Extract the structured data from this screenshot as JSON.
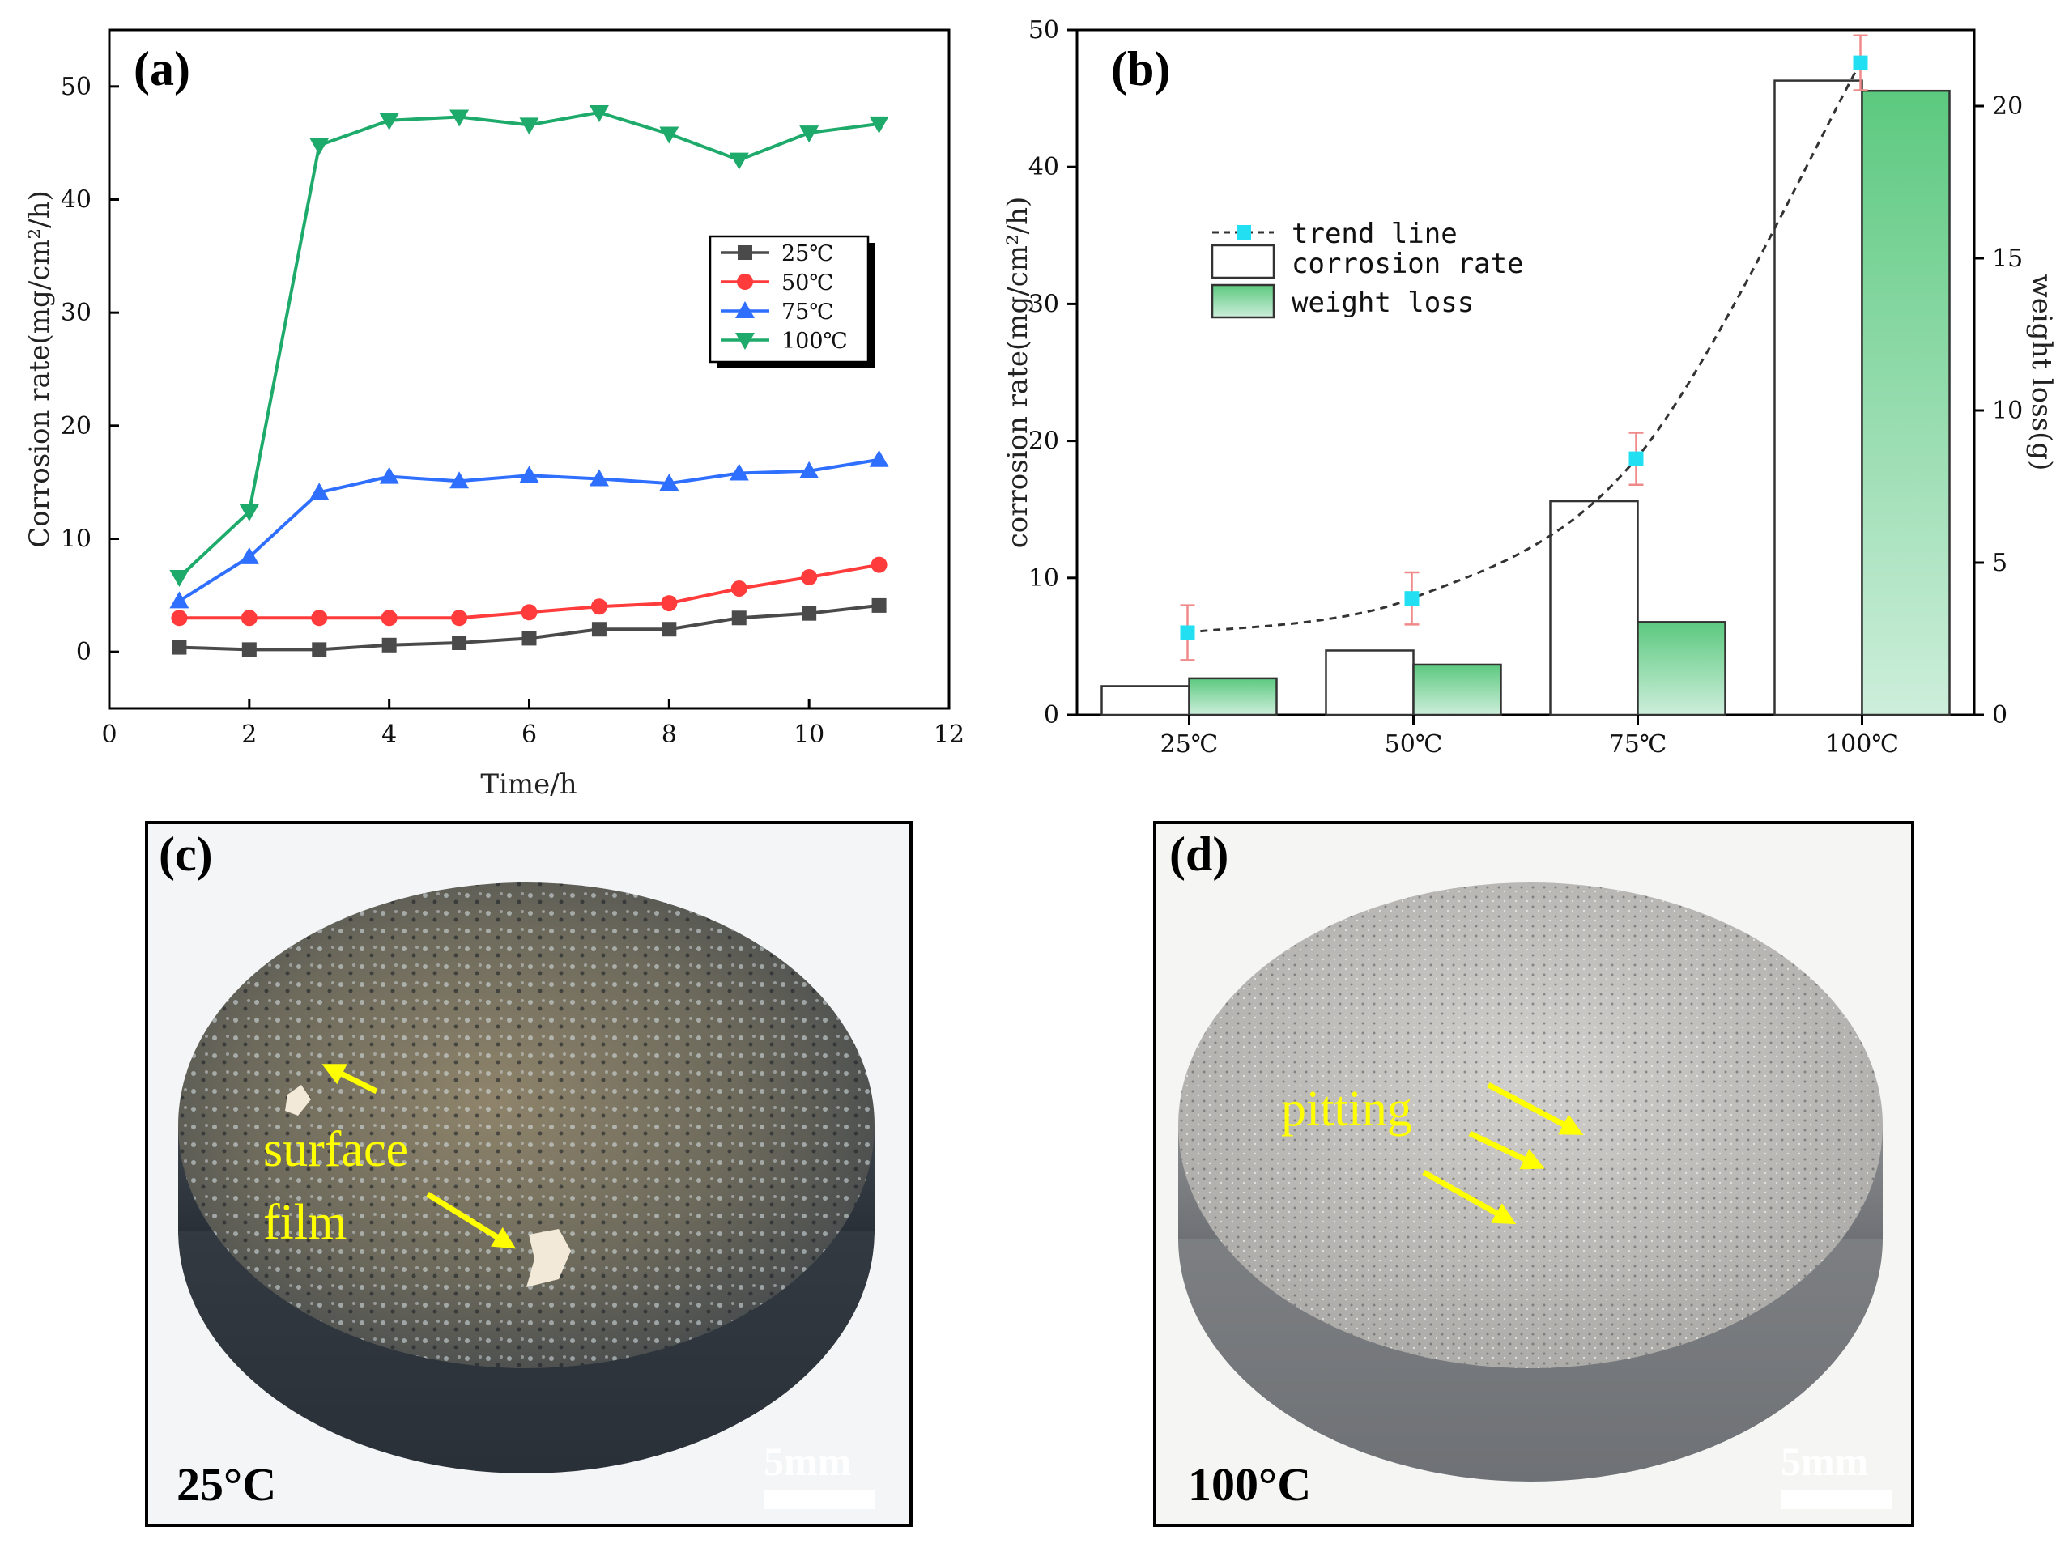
{
  "panel_labels": {
    "a": "(a)",
    "b": "(b)",
    "c": "(c)",
    "d": "(d)"
  },
  "chart_data": [
    {
      "type": "line",
      "title": "",
      "xlabel": "Time/h",
      "ylabel": "Corrosion rate(mg/cm²/h)",
      "xlim": [
        0,
        12
      ],
      "ylim": [
        -5,
        55
      ],
      "xticks": [
        0,
        2,
        4,
        6,
        8,
        10,
        12
      ],
      "yticks": [
        0,
        10,
        20,
        30,
        40,
        50
      ],
      "x": [
        1,
        2,
        3,
        4,
        5,
        6,
        7,
        8,
        9,
        10,
        11
      ],
      "legend_position": "right",
      "series": [
        {
          "name": "25℃",
          "color": "#4a4a4a",
          "marker": "square",
          "values": [
            0.4,
            0.2,
            0.2,
            0.6,
            0.8,
            1.2,
            2.0,
            2.0,
            3.0,
            3.4,
            4.1
          ]
        },
        {
          "name": "50℃",
          "color": "#ff3b3b",
          "marker": "circle",
          "values": [
            3.0,
            3.0,
            3.0,
            3.0,
            3.0,
            3.5,
            4.0,
            4.3,
            5.6,
            6.6,
            7.7
          ]
        },
        {
          "name": "75℃",
          "color": "#2f6fff",
          "marker": "triangle-up",
          "values": [
            4.5,
            8.4,
            14.1,
            15.5,
            15.1,
            15.6,
            15.3,
            14.9,
            15.8,
            16.0,
            17.0
          ]
        },
        {
          "name": "100℃",
          "color": "#1daa6b",
          "marker": "triangle-down",
          "values": [
            6.6,
            12.4,
            44.8,
            47.0,
            47.3,
            46.6,
            47.7,
            45.8,
            43.5,
            45.9,
            46.7
          ]
        }
      ]
    },
    {
      "type": "bar",
      "title": "",
      "xlabel": "",
      "ylabel": "corrosion rate(mg/cm²/h)",
      "ylabel_right": "weight loss(g)",
      "categories": [
        "25℃",
        "50℃",
        "75℃",
        "100℃"
      ],
      "ylim": [
        0,
        50
      ],
      "yticks": [
        0,
        10,
        20,
        30,
        40,
        50
      ],
      "ylim_right": [
        0,
        22.5
      ],
      "yticks_right": [
        0,
        5,
        10,
        15,
        20
      ],
      "legend_position": "upper-left",
      "series": [
        {
          "name": "corrosion rate",
          "axis": "left",
          "values": [
            2.1,
            4.7,
            15.6,
            46.3
          ]
        },
        {
          "name": "weight loss",
          "axis": "right",
          "values": [
            1.2,
            1.65,
            3.05,
            20.5
          ]
        },
        {
          "name": "trend line",
          "axis": "left",
          "values": [
            6.0,
            8.5,
            18.7,
            47.6
          ],
          "errors": [
            2.0,
            1.9,
            1.9,
            2.0
          ]
        }
      ]
    }
  ],
  "photo_c": {
    "temperature": "25°C",
    "scale": "5mm",
    "annotation_line1": "surface",
    "annotation_line2": "film"
  },
  "photo_d": {
    "temperature": "100°C",
    "scale": "5mm",
    "annotation": "pitting"
  }
}
